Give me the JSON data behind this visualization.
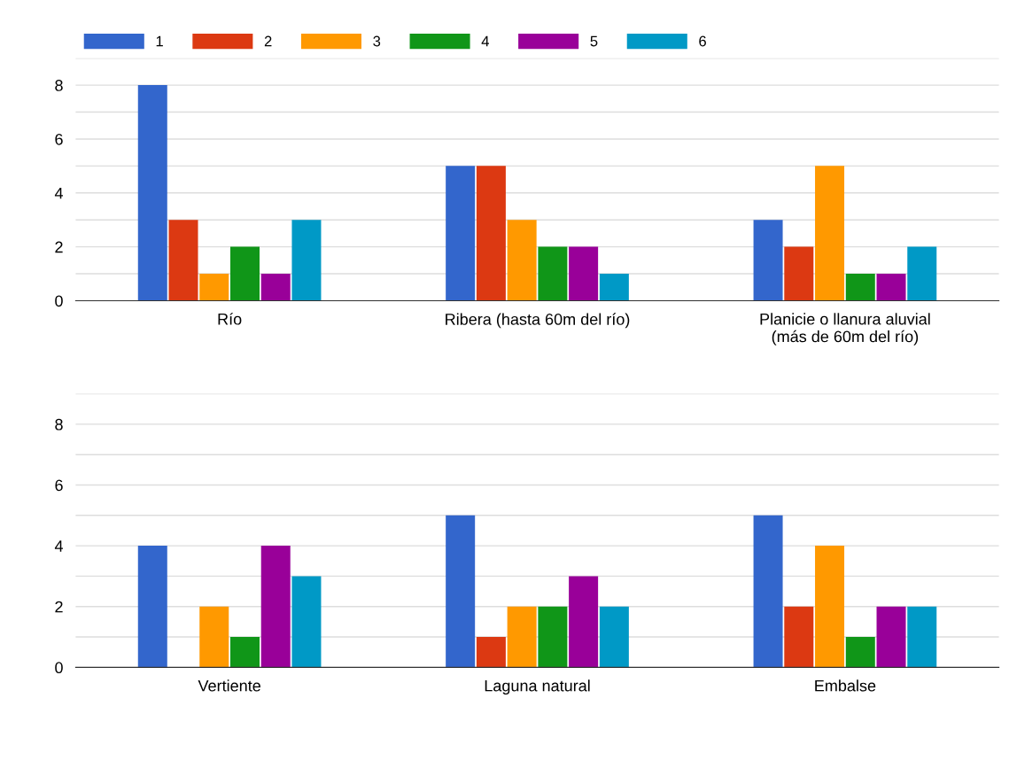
{
  "chart_data": [
    {
      "type": "bar",
      "categories": [
        "Río",
        "Ribera (hasta 60m del río)",
        "Planicie o llanura aluvial\n(más de 60m del río)"
      ],
      "ylim": [
        0,
        9
      ],
      "yticks": [
        0,
        {
          "value": 1,
          "label": null
        },
        2,
        {
          "value": 3,
          "label": null
        },
        4,
        {
          "value": 5,
          "label": null
        },
        6,
        {
          "value": 7,
          "label": null
        },
        8,
        {
          "value": 9,
          "label": null
        }
      ],
      "grid": "y",
      "legend": "top left",
      "series": [
        {
          "name": "1",
          "color": "#3366cc",
          "values": [
            8,
            5,
            3
          ]
        },
        {
          "name": "2",
          "color": "#dc3912",
          "values": [
            3,
            5,
            2
          ]
        },
        {
          "name": "3",
          "color": "#ff9900",
          "values": [
            1,
            3,
            5
          ]
        },
        {
          "name": "4",
          "color": "#109618",
          "values": [
            2,
            2,
            1
          ]
        },
        {
          "name": "5",
          "color": "#990099",
          "values": [
            1,
            2,
            1
          ]
        },
        {
          "name": "6",
          "color": "#0099c6",
          "values": [
            3,
            1,
            2
          ]
        }
      ]
    },
    {
      "type": "bar",
      "categories": [
        "Vertiente",
        "Laguna natural",
        "Embalse"
      ],
      "ylim": [
        0,
        9
      ],
      "yticks": [
        0,
        {
          "value": 1,
          "label": null
        },
        2,
        {
          "value": 3,
          "label": null
        },
        4,
        {
          "value": 5,
          "label": null
        },
        6,
        {
          "value": 7,
          "label": null
        },
        8,
        {
          "value": 9,
          "label": null
        }
      ],
      "grid": "y",
      "series": [
        {
          "color": "#3366cc",
          "values": [
            4,
            5,
            5
          ]
        },
        {
          "color": "#dc3912",
          "values": [
            0,
            1,
            2
          ]
        },
        {
          "color": "#ff9900",
          "values": [
            2,
            2,
            4
          ]
        },
        {
          "color": "#109618",
          "values": [
            1,
            2,
            1
          ]
        },
        {
          "color": "#990099",
          "values": [
            4,
            3,
            2
          ]
        },
        {
          "color": "#0099c6",
          "values": [
            3,
            2,
            2
          ]
        }
      ]
    }
  ]
}
